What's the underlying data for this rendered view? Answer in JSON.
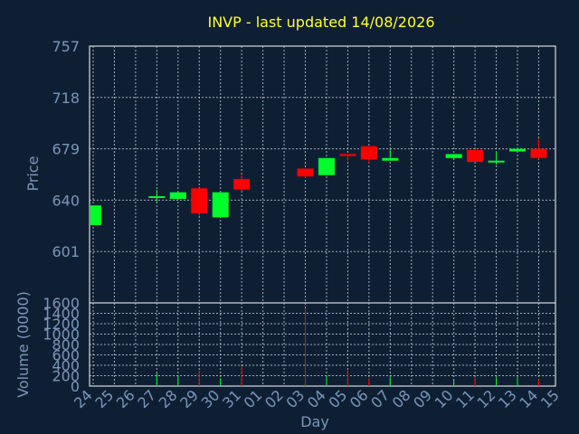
{
  "chart_data": {
    "type": "candlestick",
    "title": "INVP - last updated 14/08/2026",
    "price_axis": {
      "ylabel": "Price",
      "ylim": [
        562,
        757
      ],
      "ticks": [
        "757",
        "718",
        "679",
        "640",
        "601"
      ]
    },
    "volume_axis": {
      "ylabel": "Volume (0000)",
      "ylim": [
        0,
        1600
      ],
      "ticks": [
        "1600",
        "1400",
        "1200",
        "1000",
        "800",
        "600",
        "400",
        "200",
        "0"
      ],
      "tick_values": [
        1600,
        1400,
        1200,
        1000,
        800,
        600,
        400,
        200,
        0
      ]
    },
    "xlabel": "Day",
    "x_ticks": [
      "24",
      "25",
      "26",
      "27",
      "28",
      "29",
      "30",
      "31",
      "01",
      "02",
      "03",
      "04",
      "05",
      "06",
      "07",
      "08",
      "09",
      "10",
      "11",
      "12",
      "13",
      "14",
      "15"
    ],
    "candles": [
      {
        "day": "24",
        "open": 621,
        "high": 636,
        "low": 621,
        "close": 636,
        "volume": 0
      },
      {
        "day": "27",
        "open": 643,
        "high": 648,
        "low": 638,
        "close": 643,
        "volume": 250
      },
      {
        "day": "28",
        "open": 641,
        "high": 646,
        "low": 641,
        "close": 646,
        "volume": 200
      },
      {
        "day": "29",
        "open": 649,
        "high": 649,
        "low": 628,
        "close": 630,
        "volume": 300
      },
      {
        "day": "30",
        "open": 627,
        "high": 646,
        "low": 627,
        "close": 646,
        "volume": 150
      },
      {
        "day": "31",
        "open": 656,
        "high": 660,
        "low": 647,
        "close": 648,
        "volume": 380
      },
      {
        "day": "03",
        "open": 664,
        "high": 664,
        "low": 657,
        "close": 658,
        "volume": 1500
      },
      {
        "day": "04",
        "open": 659,
        "high": 672,
        "low": 659,
        "close": 672,
        "volume": 200
      },
      {
        "day": "05",
        "open": 675,
        "high": 675,
        "low": 670,
        "close": 674,
        "volume": 300
      },
      {
        "day": "06",
        "open": 681,
        "high": 681,
        "low": 668,
        "close": 671,
        "volume": 150
      },
      {
        "day": "07",
        "open": 670,
        "high": 679,
        "low": 670,
        "close": 672,
        "volume": 170
      },
      {
        "day": "10",
        "open": 672,
        "high": 675,
        "low": 671,
        "close": 675,
        "volume": 130
      },
      {
        "day": "11",
        "open": 678,
        "high": 679,
        "low": 669,
        "close": 669,
        "volume": 170
      },
      {
        "day": "12",
        "open": 670,
        "high": 677,
        "low": 667,
        "close": 670,
        "volume": 170
      },
      {
        "day": "13",
        "open": 677,
        "high": 680,
        "low": 677,
        "close": 679,
        "volume": 170
      },
      {
        "day": "14",
        "open": 679,
        "high": 687,
        "low": 671,
        "close": 672,
        "volume": 130
      }
    ],
    "colors": {
      "up": "#00ff2a",
      "down": "#ff0000",
      "title": "#ffff33",
      "labels": "#7a96bb",
      "grid": "#c8d0dc",
      "background": "#0f1f33"
    },
    "grid": true
  }
}
